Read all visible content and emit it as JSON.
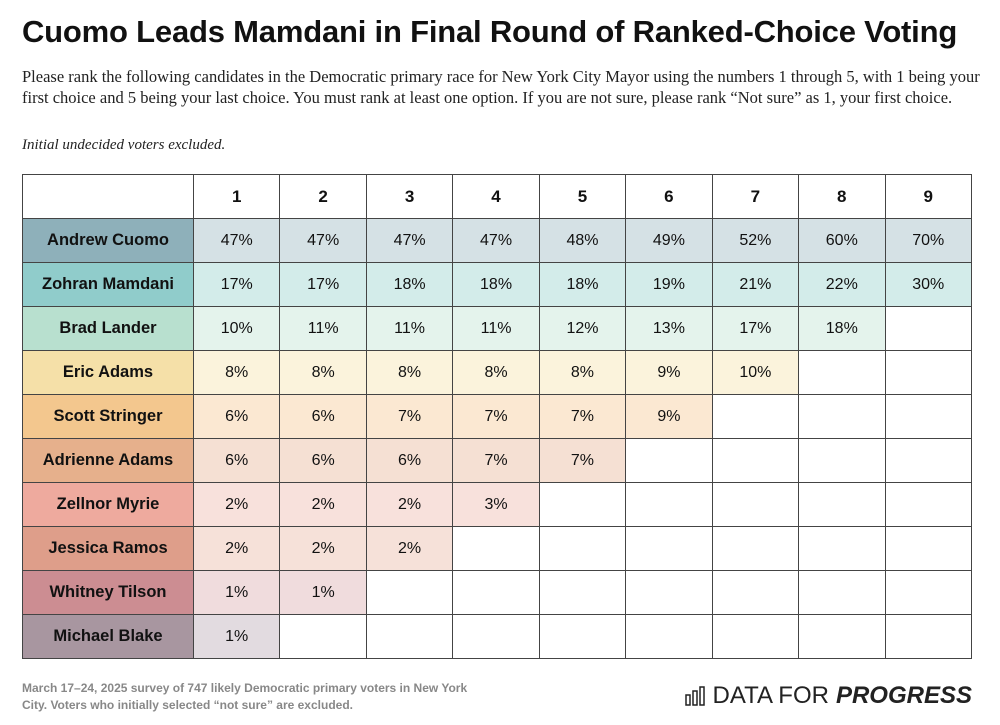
{
  "header": {
    "title": "Cuomo Leads Mamdani in Final Round of Ranked-Choice Voting",
    "description": "Please rank the following candidates in the Democratic primary race for New York City Mayor using the numbers 1 through 5, with 1 being your first choice and 5 being your last choice. You must rank at least one option. If you are not sure, please rank “Not sure” as 1, your first choice.",
    "note": "Initial undecided voters excluded."
  },
  "table": {
    "columns": [
      "1",
      "2",
      "3",
      "4",
      "5",
      "6",
      "7",
      "8",
      "9"
    ],
    "rows": [
      {
        "label": "Andrew Cuomo",
        "color": "#8eb0ba",
        "tint": "#d5e1e5",
        "cells": [
          "47%",
          "47%",
          "47%",
          "47%",
          "48%",
          "49%",
          "52%",
          "60%",
          "70%"
        ]
      },
      {
        "label": "Zohran Mamdani",
        "color": "#90cccb",
        "tint": "#d3ecea",
        "cells": [
          "17%",
          "17%",
          "18%",
          "18%",
          "18%",
          "19%",
          "21%",
          "22%",
          "30%"
        ]
      },
      {
        "label": "Brad Lander",
        "color": "#b8e0cf",
        "tint": "#e4f3ec",
        "cells": [
          "10%",
          "11%",
          "11%",
          "11%",
          "12%",
          "13%",
          "17%",
          "18%"
        ]
      },
      {
        "label": "Eric Adams",
        "color": "#f5e0a8",
        "tint": "#fbf3dc",
        "cells": [
          "8%",
          "8%",
          "8%",
          "8%",
          "8%",
          "9%",
          "10%"
        ]
      },
      {
        "label": "Scott Stringer",
        "color": "#f3c78e",
        "tint": "#fbe8d2",
        "cells": [
          "6%",
          "6%",
          "7%",
          "7%",
          "7%",
          "9%"
        ]
      },
      {
        "label": "Adrienne Adams",
        "color": "#e6b08c",
        "tint": "#f5e0d3",
        "cells": [
          "6%",
          "6%",
          "6%",
          "7%",
          "7%"
        ]
      },
      {
        "label": "Zellnor Myrie",
        "color": "#eeaa9e",
        "tint": "#f8e1dc",
        "cells": [
          "2%",
          "2%",
          "2%",
          "3%"
        ]
      },
      {
        "label": "Jessica Ramos",
        "color": "#de9e8a",
        "tint": "#f6e1d9",
        "cells": [
          "2%",
          "2%",
          "2%"
        ]
      },
      {
        "label": "Whitney Tilson",
        "color": "#cc8d92",
        "tint": "#f0dcdd",
        "cells": [
          "1%",
          "1%"
        ]
      },
      {
        "label": "Michael Blake",
        "color": "#a896a0",
        "tint": "#e2dbe0",
        "cells": [
          "1%"
        ]
      }
    ]
  },
  "footer": {
    "source": "March 17–24, 2025 survey of 747 likely Democratic primary voters in New York City. Voters who initially selected “not sure” are excluded.",
    "logo_prefix": "DATA FOR",
    "logo_emphasis": "PROGRESS"
  }
}
